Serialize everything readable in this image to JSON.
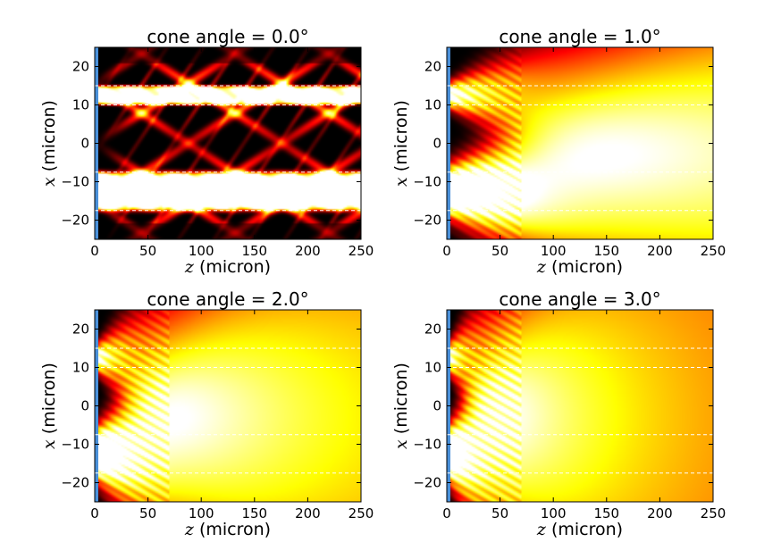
{
  "chart_data": [
    {
      "type": "heatmap",
      "title": "cone angle = 0.0°",
      "xlabel_var": "z",
      "xlabel": "(micron)",
      "ylabel_var": "x",
      "ylabel": "(micron)",
      "xlim": [
        0,
        250
      ],
      "ylim": [
        -25,
        25
      ],
      "xticks": [
        "0",
        "50",
        "100",
        "150",
        "200",
        "250"
      ],
      "yticks": [
        "−20",
        "−10",
        "0",
        "10",
        "20"
      ],
      "colormap": "hot",
      "guides_dashed_y": [
        15,
        10,
        -7.5,
        -17.5
      ],
      "source_bar_color": "#4a90d9",
      "cone_angle_deg": 0.0,
      "hot_bands": [
        {
          "center": 12.5,
          "width": 5,
          "note": "interference stripes"
        },
        {
          "center": -12.5,
          "width": 10,
          "note": "bright saturated band"
        }
      ]
    },
    {
      "type": "heatmap",
      "title": "cone angle = 1.0°",
      "xlabel_var": "z",
      "xlabel": "(micron)",
      "ylabel_var": "x",
      "ylabel": "(micron)",
      "xlim": [
        0,
        250
      ],
      "ylim": [
        -25,
        25
      ],
      "xticks": [
        "0",
        "50",
        "100",
        "150",
        "200",
        "250"
      ],
      "yticks": [
        "−20",
        "−10",
        "0",
        "10",
        "20"
      ],
      "colormap": "hot",
      "guides_dashed_y": [
        15,
        10,
        -7.5,
        -17.5
      ],
      "source_bar_color": "#4a90d9",
      "cone_angle_deg": 1.0
    },
    {
      "type": "heatmap",
      "title": "cone angle = 2.0°",
      "xlabel_var": "z",
      "xlabel": "(micron)",
      "ylabel_var": "x",
      "ylabel": "(micron)",
      "xlim": [
        0,
        250
      ],
      "ylim": [
        -25,
        25
      ],
      "xticks": [
        "0",
        "50",
        "100",
        "150",
        "200",
        "250"
      ],
      "yticks": [
        "−20",
        "−10",
        "0",
        "10",
        "20"
      ],
      "colormap": "hot",
      "guides_dashed_y": [
        15,
        10,
        -7.5,
        -17.5
      ],
      "source_bar_color": "#4a90d9",
      "cone_angle_deg": 2.0
    },
    {
      "type": "heatmap",
      "title": "cone angle = 3.0°",
      "xlabel_var": "z",
      "xlabel": "(micron)",
      "ylabel_var": "x",
      "ylabel": "(micron)",
      "xlim": [
        0,
        250
      ],
      "ylim": [
        -25,
        25
      ],
      "xticks": [
        "0",
        "50",
        "100",
        "150",
        "200",
        "250"
      ],
      "yticks": [
        "−20",
        "−10",
        "0",
        "10",
        "20"
      ],
      "colormap": "hot",
      "guides_dashed_y": [
        15,
        10,
        -7.5,
        -17.5
      ],
      "source_bar_color": "#4a90d9",
      "cone_angle_deg": 3.0
    }
  ]
}
